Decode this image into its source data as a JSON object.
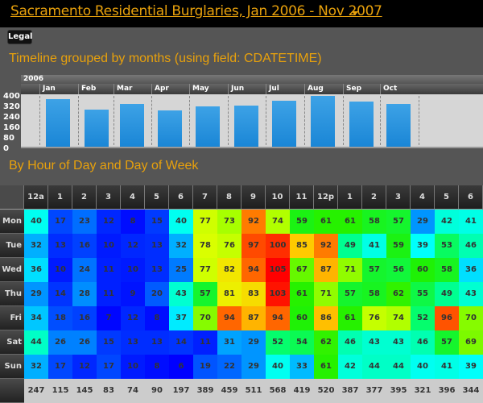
{
  "header": {
    "title": "Sacramento Residential Burglaries, Jan 2006 - Nov 2007",
    "legal_button": "Legal"
  },
  "timeline": {
    "title": "Timeline grouped by months (using field: CDATETIME)",
    "year": "2006",
    "months": [
      "Jan",
      "Feb",
      "Mar",
      "Apr",
      "May",
      "Jun",
      "Jul",
      "Aug",
      "Sep",
      "Oct"
    ],
    "values": [
      373,
      290,
      335,
      285,
      318,
      325,
      362,
      402,
      355,
      335
    ],
    "y_ticks": [
      "400",
      "320",
      "240",
      "160",
      "80",
      "0"
    ],
    "y_max": 400,
    "bar_color": "#2b95de"
  },
  "heatmap": {
    "title": "By Hour of Day and Day of Week",
    "hours": [
      "12a",
      "1",
      "2",
      "3",
      "4",
      "5",
      "6",
      "7",
      "8",
      "9",
      "10",
      "11",
      "12p",
      "1",
      "2",
      "3",
      "4",
      "5",
      "6"
    ],
    "days": [
      "Mon",
      "Tue",
      "Wed",
      "Thu",
      "Fri",
      "Sat",
      "Sun"
    ],
    "values": [
      [
        40,
        17,
        23,
        12,
        8,
        15,
        40,
        77,
        73,
        92,
        74,
        59,
        61,
        61,
        58,
        57,
        29,
        42,
        41
      ],
      [
        32,
        13,
        16,
        10,
        12,
        13,
        32,
        78,
        76,
        97,
        100,
        85,
        92,
        49,
        41,
        59,
        39,
        53,
        46
      ],
      [
        36,
        10,
        24,
        11,
        10,
        13,
        25,
        77,
        82,
        94,
        105,
        67,
        87,
        71,
        57,
        56,
        60,
        58,
        36
      ],
      [
        29,
        14,
        28,
        11,
        9,
        20,
        43,
        57,
        81,
        83,
        103,
        61,
        71,
        57,
        58,
        62,
        55,
        49,
        43
      ],
      [
        34,
        18,
        16,
        7,
        12,
        8,
        37,
        70,
        94,
        87,
        94,
        60,
        86,
        61,
        76,
        74,
        52,
        96,
        70
      ],
      [
        44,
        26,
        26,
        15,
        13,
        13,
        14,
        11,
        31,
        29,
        52,
        54,
        62,
        46,
        43,
        43,
        46,
        57,
        69
      ],
      [
        32,
        17,
        12,
        17,
        10,
        8,
        6,
        19,
        22,
        29,
        40,
        33,
        61,
        42,
        44,
        44,
        40,
        41,
        39
      ]
    ],
    "totals": [
      "247",
      "115",
      "145",
      "83",
      "74",
      "90",
      "197",
      "389",
      "459",
      "511",
      "568",
      "419",
      "520",
      "387",
      "377",
      "395",
      "321",
      "396",
      "344"
    ]
  }
}
